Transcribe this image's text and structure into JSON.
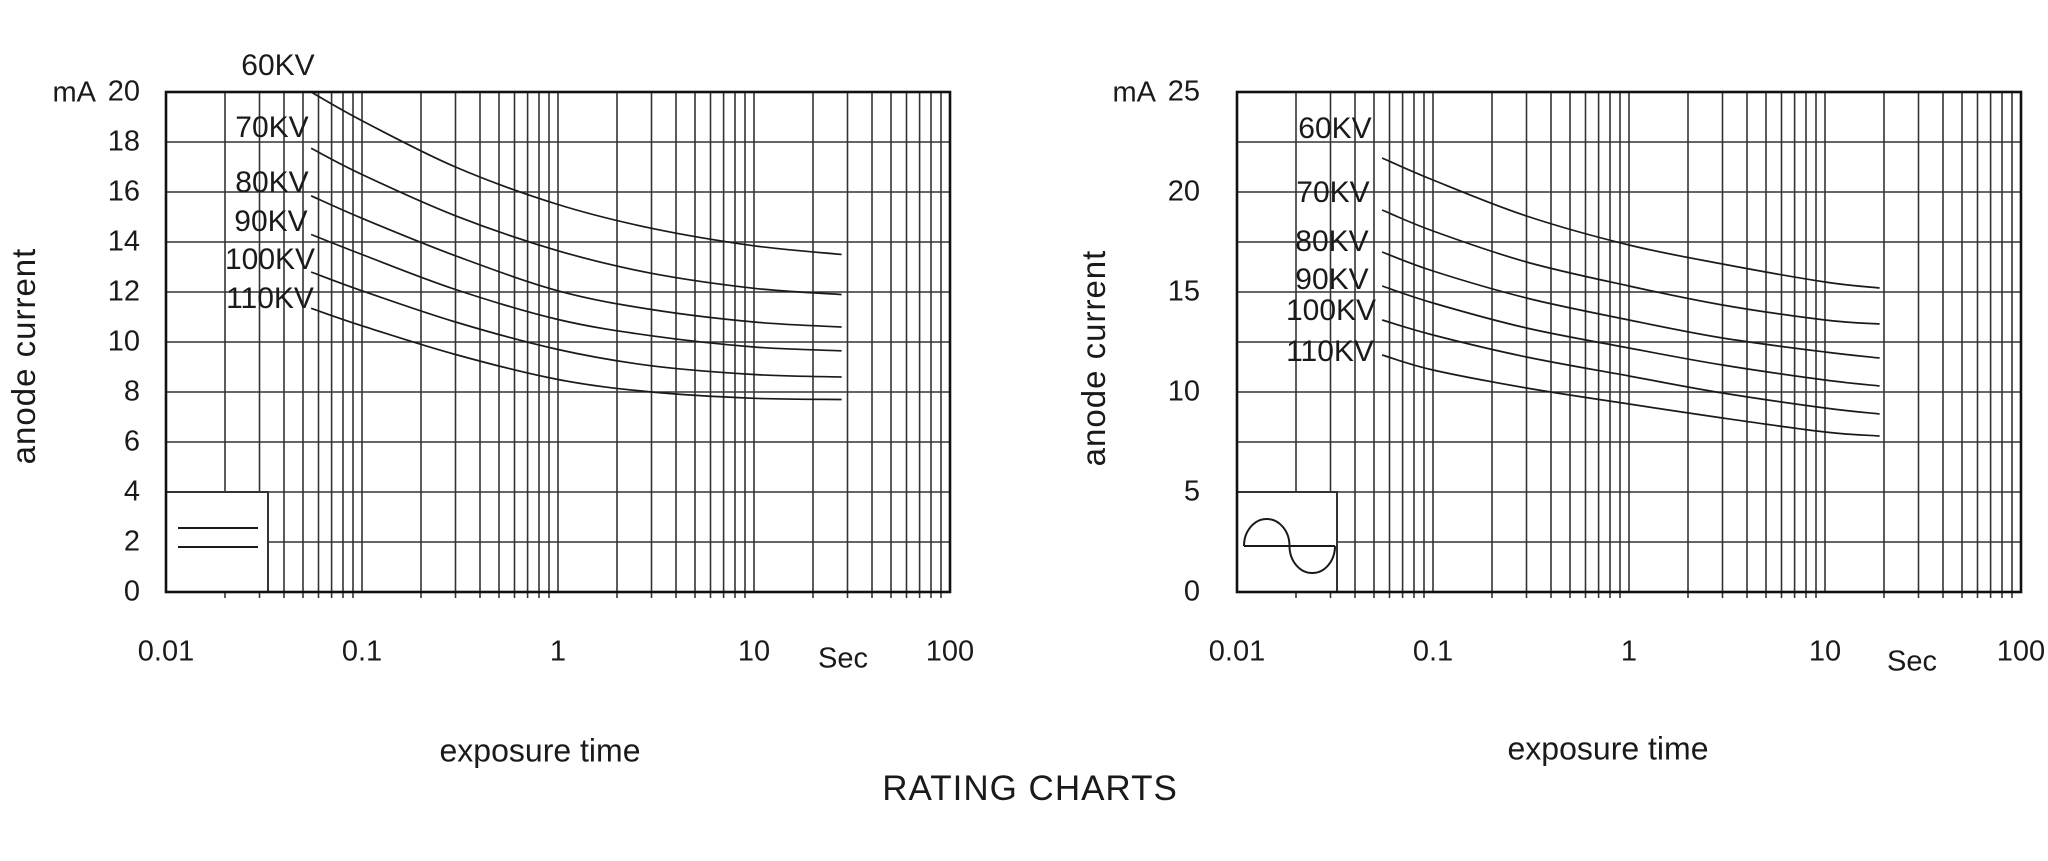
{
  "title": "RATING CHARTS",
  "colors": {
    "ink": "#1a1a1a",
    "grid": "#333333",
    "curve": "#1a1a1a",
    "background": "#ffffff"
  },
  "chart_data": [
    {
      "type": "line",
      "name": "rating-chart-constant-potential",
      "unit_label": "mA",
      "ylabel": "anode current",
      "xlabel": "exposure time",
      "x_unit_label": "Sec",
      "xscale": "log",
      "xlim": [
        0.01,
        100
      ],
      "ylim": [
        0,
        20
      ],
      "y_grid_step_mA": 2,
      "grid": "log minor verticals 2-9 per decade, horizontal line every 2 mA",
      "legend_waveform": "constant-potential-dc (two parallel horizontal lines)",
      "y_tick_labels": [
        "20",
        "18",
        "16",
        "14",
        "12",
        "10",
        "8",
        "6",
        "4",
        "2",
        "0"
      ],
      "y_tick_values": [
        20,
        18,
        16,
        14,
        12,
        10,
        8,
        6,
        4,
        2,
        0
      ],
      "x_tick_labels": [
        "0.01",
        "0.1",
        "1",
        "10",
        "100"
      ],
      "series": [
        {
          "name": "60KV",
          "points": [
            [
              0.055,
              20.0
            ],
            [
              0.1,
              18.85
            ],
            [
              0.3,
              17.0
            ],
            [
              1,
              15.5
            ],
            [
              3,
              14.55
            ],
            [
              10,
              13.85
            ],
            [
              28,
              13.5
            ]
          ]
        },
        {
          "name": "70KV",
          "points": [
            [
              0.055,
              17.75
            ],
            [
              0.1,
              16.7
            ],
            [
              0.3,
              15.05
            ],
            [
              1,
              13.65
            ],
            [
              3,
              12.75
            ],
            [
              10,
              12.15
            ],
            [
              28,
              11.9
            ]
          ]
        },
        {
          "name": "80KV",
          "points": [
            [
              0.055,
              15.85
            ],
            [
              0.1,
              14.95
            ],
            [
              0.3,
              13.45
            ],
            [
              1,
              12.05
            ],
            [
              3,
              11.3
            ],
            [
              10,
              10.8
            ],
            [
              28,
              10.6
            ]
          ]
        },
        {
          "name": "90KV",
          "points": [
            [
              0.055,
              14.3
            ],
            [
              0.1,
              13.5
            ],
            [
              0.3,
              12.1
            ],
            [
              1,
              10.9
            ],
            [
              3,
              10.25
            ],
            [
              10,
              9.8
            ],
            [
              28,
              9.65
            ]
          ]
        },
        {
          "name": "100KV",
          "points": [
            [
              0.055,
              12.8
            ],
            [
              0.1,
              12.05
            ],
            [
              0.3,
              10.8
            ],
            [
              1,
              9.7
            ],
            [
              3,
              9.05
            ],
            [
              10,
              8.7
            ],
            [
              28,
              8.6
            ]
          ]
        },
        {
          "name": "110KV",
          "points": [
            [
              0.055,
              11.35
            ],
            [
              0.1,
              10.65
            ],
            [
              0.3,
              9.5
            ],
            [
              1,
              8.5
            ],
            [
              3,
              8.0
            ],
            [
              10,
              7.75
            ],
            [
              28,
              7.7
            ]
          ]
        }
      ]
    },
    {
      "type": "line",
      "name": "rating-chart-single-phase-sine",
      "unit_label": "mA",
      "ylabel": "anode current",
      "xlabel": "exposure time",
      "x_unit_label": "Sec",
      "xscale": "log",
      "xlim": [
        0.01,
        100
      ],
      "ylim": [
        0,
        25
      ],
      "y_grid_step_mA": 2.5,
      "grid": "log minor verticals 2-9 per decade, horizontal line every 2.5 mA, labels every 5 mA",
      "legend_waveform": "single-phase-sine-wave",
      "y_tick_labels": [
        "25",
        "20",
        "15",
        "10",
        "5",
        "0"
      ],
      "y_tick_values": [
        25,
        20,
        15,
        10,
        5,
        0
      ],
      "x_tick_labels": [
        "0.01",
        "0.1",
        "1",
        "10",
        "100"
      ],
      "series": [
        {
          "name": "60KV",
          "points": [
            [
              0.055,
              21.7
            ],
            [
              0.1,
              20.6
            ],
            [
              0.3,
              18.8
            ],
            [
              1,
              17.35
            ],
            [
              3,
              16.4
            ],
            [
              10,
              15.5
            ],
            [
              19,
              15.2
            ]
          ]
        },
        {
          "name": "70KV",
          "points": [
            [
              0.055,
              19.1
            ],
            [
              0.1,
              18.05
            ],
            [
              0.3,
              16.5
            ],
            [
              1,
              15.3
            ],
            [
              3,
              14.35
            ],
            [
              10,
              13.6
            ],
            [
              19,
              13.4
            ]
          ]
        },
        {
          "name": "80KV",
          "points": [
            [
              0.055,
              17.0
            ],
            [
              0.1,
              16.05
            ],
            [
              0.3,
              14.7
            ],
            [
              1,
              13.6
            ],
            [
              3,
              12.7
            ],
            [
              10,
              12.0
            ],
            [
              19,
              11.7
            ]
          ]
        },
        {
          "name": "90KV",
          "points": [
            [
              0.055,
              15.3
            ],
            [
              0.1,
              14.45
            ],
            [
              0.3,
              13.2
            ],
            [
              1,
              12.2
            ],
            [
              3,
              11.35
            ],
            [
              10,
              10.6
            ],
            [
              19,
              10.3
            ]
          ]
        },
        {
          "name": "100KV",
          "points": [
            [
              0.055,
              13.6
            ],
            [
              0.1,
              12.85
            ],
            [
              0.3,
              11.75
            ],
            [
              1,
              10.8
            ],
            [
              3,
              9.95
            ],
            [
              10,
              9.2
            ],
            [
              19,
              8.9
            ]
          ]
        },
        {
          "name": "110KV",
          "points": [
            [
              0.055,
              11.85
            ],
            [
              0.1,
              11.1
            ],
            [
              0.3,
              10.2
            ],
            [
              1,
              9.4
            ],
            [
              3,
              8.7
            ],
            [
              10,
              8.0
            ],
            [
              19,
              7.8
            ]
          ]
        }
      ]
    }
  ]
}
